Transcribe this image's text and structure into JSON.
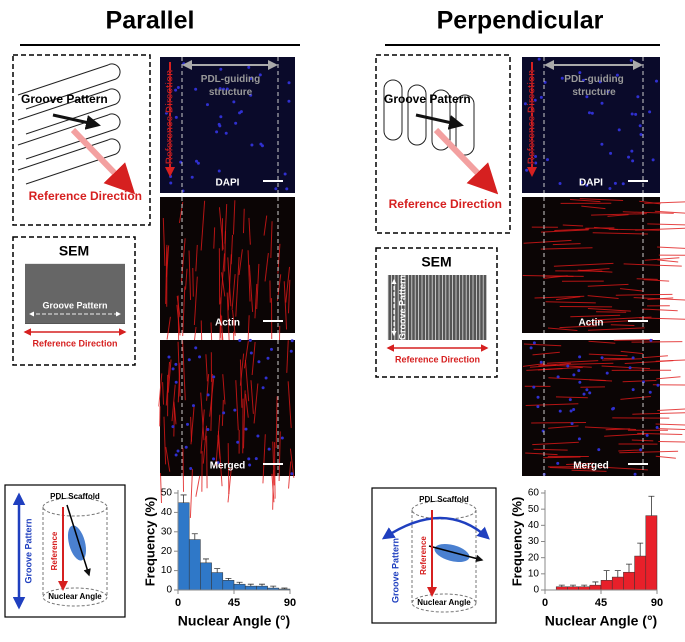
{
  "panels": [
    {
      "title": "Parallel",
      "schematic": {
        "groove_label": "Groove Pattern",
        "reference_label": "Reference Direction"
      },
      "images": {
        "vertical_label": "Reference Direction",
        "structure_label": "PDL-guiding structure",
        "stains": [
          "DAPI",
          "Actin",
          "Merged"
        ]
      },
      "sem": {
        "title": "SEM",
        "groove_label": "Groove Pattern",
        "reference_label": "Reference Direction"
      },
      "diagram": {
        "scaffold": "PDL Scaffold",
        "reference": "Reference",
        "groove": "Groove Pattern",
        "angle": "Nuclear Angle"
      }
    },
    {
      "title": "Perpendicular",
      "schematic": {
        "groove_label": "Groove Pattern",
        "reference_label": "Reference Direction"
      },
      "images": {
        "vertical_label": "Reference Direction",
        "structure_label": "PDL-guiding structure",
        "stains": [
          "DAPI",
          "Actin",
          "Merged"
        ]
      },
      "sem": {
        "title": "SEM",
        "groove_label": "Groove Pattern",
        "reference_label": "Reference Direction"
      },
      "diagram": {
        "scaffold": "PDL Scaffold",
        "reference": "Reference",
        "groove": "Groove Pattern",
        "angle": "Nuclear Angle"
      }
    }
  ],
  "chart_data": [
    {
      "type": "histogram",
      "xlabel": "Nuclear Angle (°)",
      "ylabel": "Frequency (%)",
      "color": "#2f78c8",
      "bins": [
        0,
        9,
        18,
        27,
        36,
        45,
        54,
        63,
        72,
        81,
        90
      ],
      "values": [
        45,
        26,
        14,
        9,
        5,
        3,
        2,
        2,
        1,
        0.5
      ],
      "errors": [
        4,
        3,
        2,
        2,
        1,
        1,
        1,
        1,
        1,
        0.5
      ],
      "xlim": [
        0,
        90
      ],
      "ylim": [
        0,
        50
      ],
      "xticks": [
        0,
        45,
        90
      ],
      "yticks": [
        0,
        10,
        20,
        30,
        40,
        50
      ]
    },
    {
      "type": "histogram",
      "xlabel": "Nuclear Angle (°)",
      "ylabel": "Frequency (%)",
      "color": "#e8202a",
      "bins": [
        0,
        9,
        18,
        27,
        36,
        45,
        54,
        63,
        72,
        81,
        90
      ],
      "values": [
        0,
        2,
        2,
        2,
        3,
        6,
        8,
        11,
        21,
        46
      ],
      "errors": [
        0,
        1,
        1,
        1,
        2,
        6,
        4,
        5,
        8,
        12
      ],
      "xlim": [
        0,
        90
      ],
      "ylim": [
        0,
        60
      ],
      "xticks": [
        0,
        45,
        90
      ],
      "yticks": [
        0,
        10,
        20,
        30,
        40,
        50,
        60
      ]
    }
  ]
}
